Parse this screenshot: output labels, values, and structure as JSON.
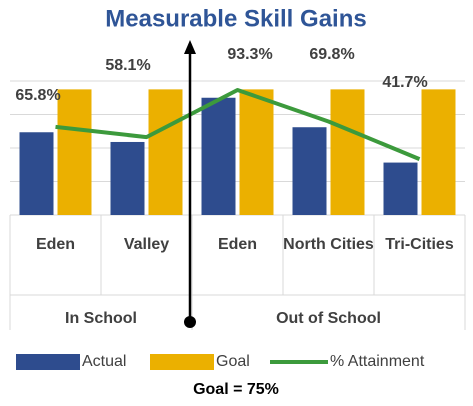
{
  "chart_data": {
    "type": "bar",
    "title": "Measurable Skill Gains",
    "categories": [
      "Eden",
      "Valley",
      "Eden",
      "North Cities",
      "Tri-Cities"
    ],
    "groups": [
      {
        "label": "In School",
        "count": 2
      },
      {
        "label": "Out of School",
        "count": 3
      }
    ],
    "series": [
      {
        "name": "Actual",
        "type": "bar",
        "color": "#2E4C8E",
        "values": [
          49.4,
          43.6,
          70,
          52.4,
          31.3
        ]
      },
      {
        "name": "Goal",
        "type": "bar",
        "color": "#EBB000",
        "values": [
          75,
          75,
          75,
          75,
          75
        ]
      },
      {
        "name": "% Attainment",
        "type": "line",
        "axis": "y2",
        "color": "#3C9A3C",
        "values": [
          65.8,
          58.1,
          93.3,
          69.8,
          41.7
        ],
        "value_labels": [
          "65.8%",
          "58.1%",
          "93.3%",
          "69.8%",
          "41.7%"
        ]
      }
    ],
    "ylim": [
      0,
      80
    ],
    "yticks": [
      0,
      20,
      40,
      60,
      80
    ],
    "y2lim": [
      0,
      100
    ],
    "grid": true,
    "footnote": "Goal = 75%"
  }
}
